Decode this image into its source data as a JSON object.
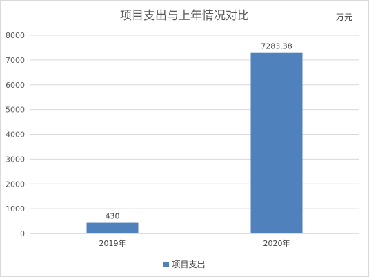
{
  "chart_data": {
    "type": "bar",
    "title": "项目支出与上年情况对比",
    "unit_label": "万元",
    "categories": [
      "2019年",
      "2020年"
    ],
    "series": [
      {
        "name": "项目支出",
        "values": [
          430,
          7283.38
        ],
        "color": "#4f81bd"
      }
    ],
    "data_labels": [
      "430",
      "7283.38"
    ],
    "ylim": [
      0,
      8000
    ],
    "yticks": [
      0,
      1000,
      2000,
      3000,
      4000,
      5000,
      6000,
      7000,
      8000
    ],
    "grid": true,
    "legend_position": "bottom"
  }
}
